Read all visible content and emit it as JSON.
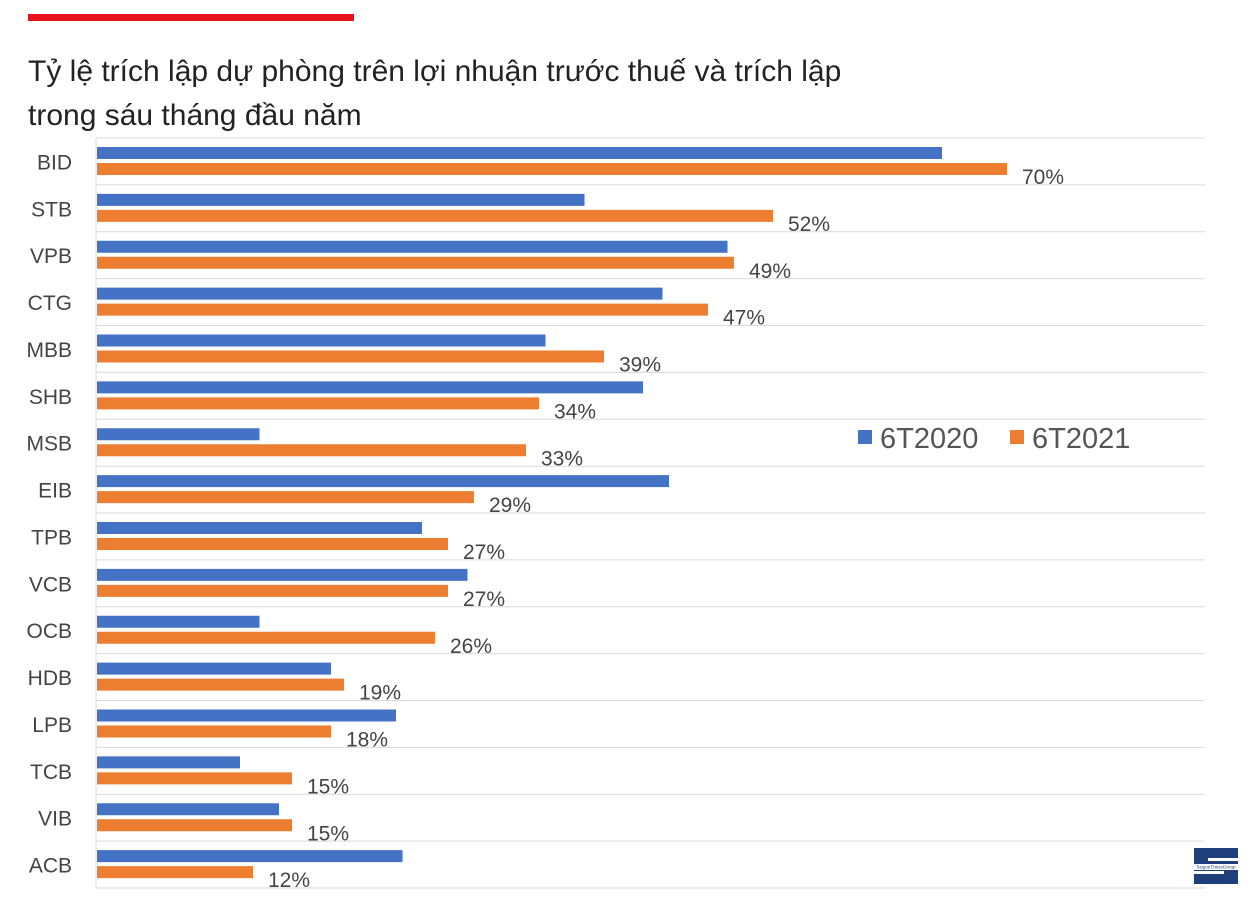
{
  "title": {
    "line1": "Tỷ lệ trích lập dự phòng trên lợi nhuận trước thuế và trích lập",
    "line2": "trong sáu tháng đầu năm"
  },
  "logo": {
    "text": "SaigonTimesGroup"
  },
  "colors": {
    "accent": "#e8131b",
    "series2020": "#4472c4",
    "series2021": "#ed7d31",
    "grid": "#d9d9d9"
  },
  "chart_data": {
    "type": "bar",
    "orientation": "horizontal",
    "categories": [
      "BID",
      "STB",
      "VPB",
      "CTG",
      "MBB",
      "SHB",
      "MSB",
      "EIB",
      "TPB",
      "VCB",
      "OCB",
      "HDB",
      "LPB",
      "TCB",
      "VIB",
      "ACB"
    ],
    "series": [
      {
        "name": "6T2020",
        "color": "#4472c4",
        "values": [
          65,
          37.5,
          48.5,
          43.5,
          34.5,
          42,
          12.5,
          44,
          25,
          28.5,
          12.5,
          18,
          23,
          11,
          14,
          23.5
        ]
      },
      {
        "name": "6T2021",
        "color": "#ed7d31",
        "values": [
          70,
          52,
          49,
          47,
          39,
          34,
          33,
          29,
          27,
          27,
          26,
          19,
          18,
          15,
          15,
          12
        ],
        "labels": [
          "70%",
          "52%",
          "49%",
          "47%",
          "39%",
          "34%",
          "33%",
          "29%",
          "27%",
          "27%",
          "26%",
          "19%",
          "18%",
          "15%",
          "15%",
          "12%"
        ]
      }
    ],
    "xlim": [
      0,
      80
    ],
    "grid": "horizontal category separators",
    "legend": "right"
  }
}
